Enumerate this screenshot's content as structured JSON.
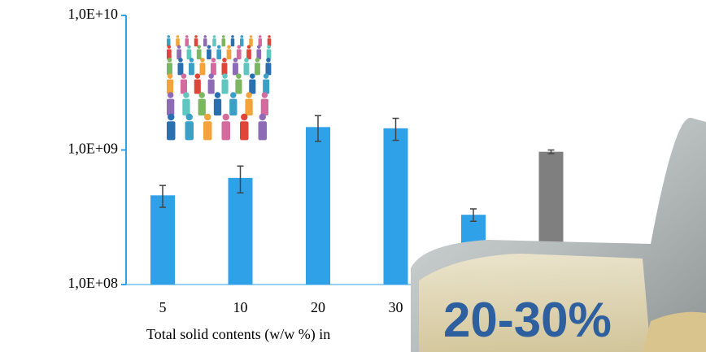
{
  "chart_data": {
    "type": "bar",
    "log_scale": true,
    "categories": [
      "5",
      "10",
      "20",
      "30",
      null,
      null
    ],
    "values": [
      460000000,
      620000000,
      1480000000,
      1450000000,
      330000000,
      970000000
    ],
    "errors": [
      85000000,
      140000000,
      320000000,
      270000000,
      35000000,
      30000000
    ],
    "colors": [
      "#2ea1e8",
      "#2ea1e8",
      "#2ea1e8",
      "#2ea1e8",
      "#2ea1e8",
      "#7f7f7f"
    ],
    "ylim": [
      100000000,
      10000000000
    ],
    "yticks": [
      {
        "value": 100000000,
        "label": "1,0E+08"
      },
      {
        "value": 1000000000,
        "label": "1,0E+09"
      },
      {
        "value": 10000000000,
        "label": "1,0E+10"
      }
    ],
    "xlabel": "Total solid contents (w/w %) in",
    "annotation": "20-30%"
  }
}
